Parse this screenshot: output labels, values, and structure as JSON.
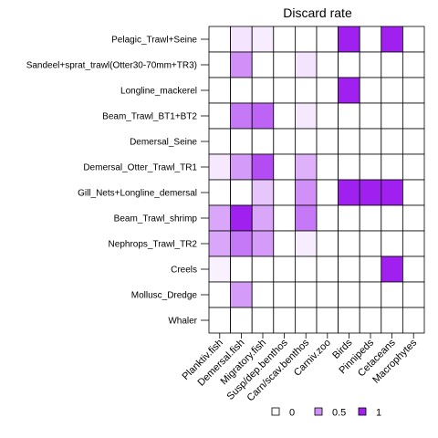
{
  "chart_data": {
    "type": "heatmap",
    "title": "Discard rate",
    "xlabel": "",
    "ylabel": "",
    "rows": [
      "Pelagic_Trawl+Seine",
      "Sandeel+sprat_trawl(Otter30-70mm+TR3)",
      "Longline_mackerel",
      "Beam_Trawl_BT1+BT2",
      "Demersal_Seine",
      "Demersal_Otter_Trawl_TR1",
      "Gill_Nets+Longline_demersal",
      "Beam_Trawl_shrimp",
      "Nephrops_Trawl_TR2",
      "Creels",
      "Mollusc_Dredge",
      "Whaler"
    ],
    "columns": [
      "Planktiv.fish",
      "Demersal.fish",
      "Migratory.fish",
      "Susp/dep.benthos",
      "Carn/scav.benthos",
      "Carniv.zoo",
      "Birds",
      "Pinnipeds",
      "Cetaceans",
      "Macrophytes"
    ],
    "values": [
      [
        0,
        0.12,
        0.08,
        0,
        0,
        0,
        1,
        0,
        1,
        0
      ],
      [
        0,
        0.5,
        0,
        0,
        0.12,
        0,
        0,
        0,
        0,
        0
      ],
      [
        0,
        0,
        0,
        0,
        0,
        0,
        1,
        0,
        0,
        0
      ],
      [
        0,
        0.6,
        0.7,
        0,
        0.1,
        0,
        0,
        0,
        0,
        0
      ],
      [
        0,
        0,
        0,
        0,
        0,
        0,
        0,
        0,
        0,
        0
      ],
      [
        0.1,
        0.45,
        0.8,
        0,
        0.35,
        0,
        0,
        0,
        0,
        0
      ],
      [
        0,
        0,
        0.25,
        0,
        0.5,
        0,
        1,
        1,
        1,
        0
      ],
      [
        0.4,
        1,
        0.4,
        0,
        0.6,
        0,
        0,
        0,
        0,
        0
      ],
      [
        0.4,
        0.6,
        0.45,
        0,
        0.08,
        0,
        0,
        0,
        0,
        0
      ],
      [
        0.06,
        0,
        0,
        0,
        0,
        0,
        0,
        0,
        1,
        0
      ],
      [
        0,
        0.45,
        0,
        0,
        0,
        0,
        0,
        0,
        0,
        0
      ],
      [
        0,
        0,
        0,
        0,
        0,
        0,
        0,
        0,
        0,
        0
      ]
    ],
    "value_range": [
      0,
      1
    ],
    "color_low": "#ffffff",
    "color_high": "#a020f0",
    "grid": true,
    "legend": {
      "placement": "bottom",
      "entries": [
        {
          "label": "0",
          "value": 0
        },
        {
          "label": "0.5",
          "value": 0.5
        },
        {
          "label": "1",
          "value": 1
        }
      ]
    }
  }
}
